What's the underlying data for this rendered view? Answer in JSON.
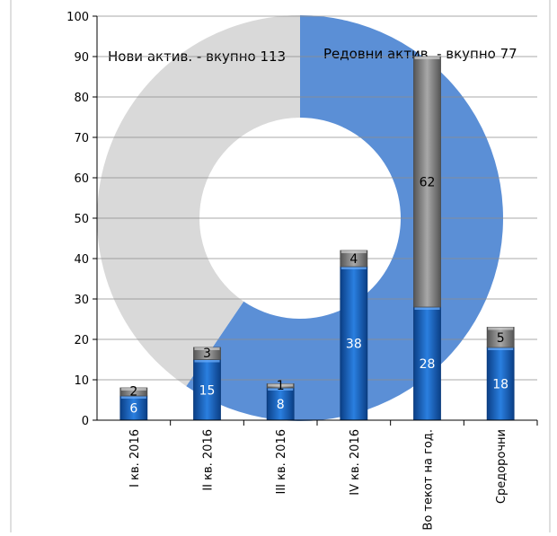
{
  "chart_data": [
    {
      "type": "pie",
      "variant": "donut",
      "slices": [
        {
          "label": "Нови актив. - вкупно 113",
          "value": 113,
          "color": "#5b8fd6"
        },
        {
          "label": "Редовни актив. - вкупно 77",
          "value": 77,
          "color": "#d9d9d9"
        }
      ]
    },
    {
      "type": "bar",
      "stacked": true,
      "categories": [
        "I кв. 2016",
        "II кв. 2016",
        "III кв. 2016",
        "IV кв. 2016",
        "Во текот на год.",
        "Средорочни"
      ],
      "series": [
        {
          "values": [
            6,
            15,
            8,
            38,
            28,
            18
          ],
          "color": "#1f6fd1"
        },
        {
          "values": [
            2,
            3,
            1,
            4,
            62,
            5
          ],
          "color": "#8c8c8c"
        }
      ],
      "ylim": [
        0,
        100
      ],
      "yticks": [
        0,
        10,
        20,
        30,
        40,
        50,
        60,
        70,
        80,
        90,
        100
      ],
      "grid": true
    }
  ]
}
